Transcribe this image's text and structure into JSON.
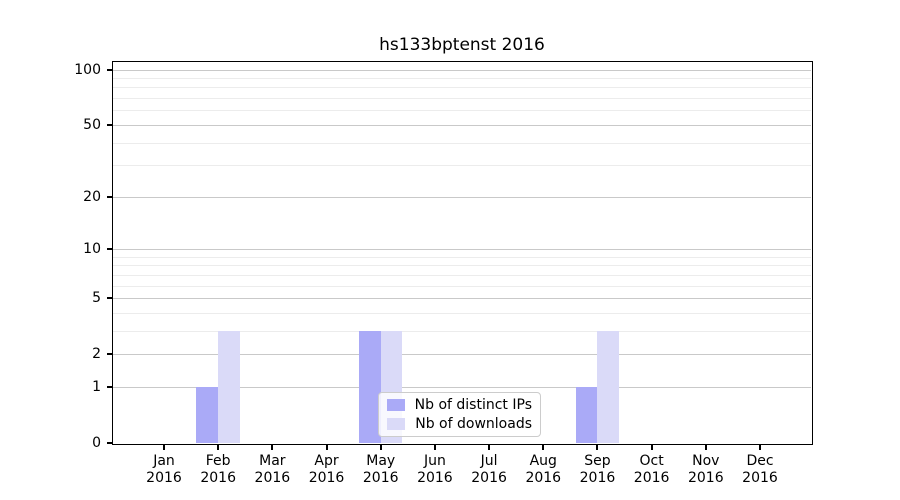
{
  "title": "hs133bptenst 2016",
  "chart_data": {
    "type": "bar",
    "title": "hs133bptenst 2016",
    "categories": [
      "Jan",
      "Feb",
      "Mar",
      "Apr",
      "May",
      "Jun",
      "Jul",
      "Aug",
      "Sep",
      "Oct",
      "Nov",
      "Dec"
    ],
    "category_year": "2016",
    "series": [
      {
        "name": "Nb of distinct IPs",
        "color": "#aaaaf7",
        "values": [
          0,
          1,
          0,
          0,
          3,
          0,
          0,
          0,
          1,
          0,
          0,
          0
        ]
      },
      {
        "name": "Nb of downloads",
        "color": "#dadaf8",
        "values": [
          0,
          3,
          0,
          0,
          3,
          0,
          0,
          0,
          3,
          0,
          0,
          0
        ]
      }
    ],
    "yscale": "log1p",
    "ylim": [
      0,
      110
    ],
    "yticks_major": [
      0,
      1,
      2,
      5,
      10,
      20,
      50,
      100
    ],
    "yticks_minor": [
      3,
      4,
      6,
      7,
      8,
      9,
      30,
      40,
      60,
      70,
      80,
      90
    ],
    "grid": "horizontal",
    "legend_position": "lower center"
  },
  "colors": {
    "major_grid": "#c9c9c9",
    "minor_grid": "#ececec",
    "spine": "#000000",
    "background": "#ffffff"
  }
}
